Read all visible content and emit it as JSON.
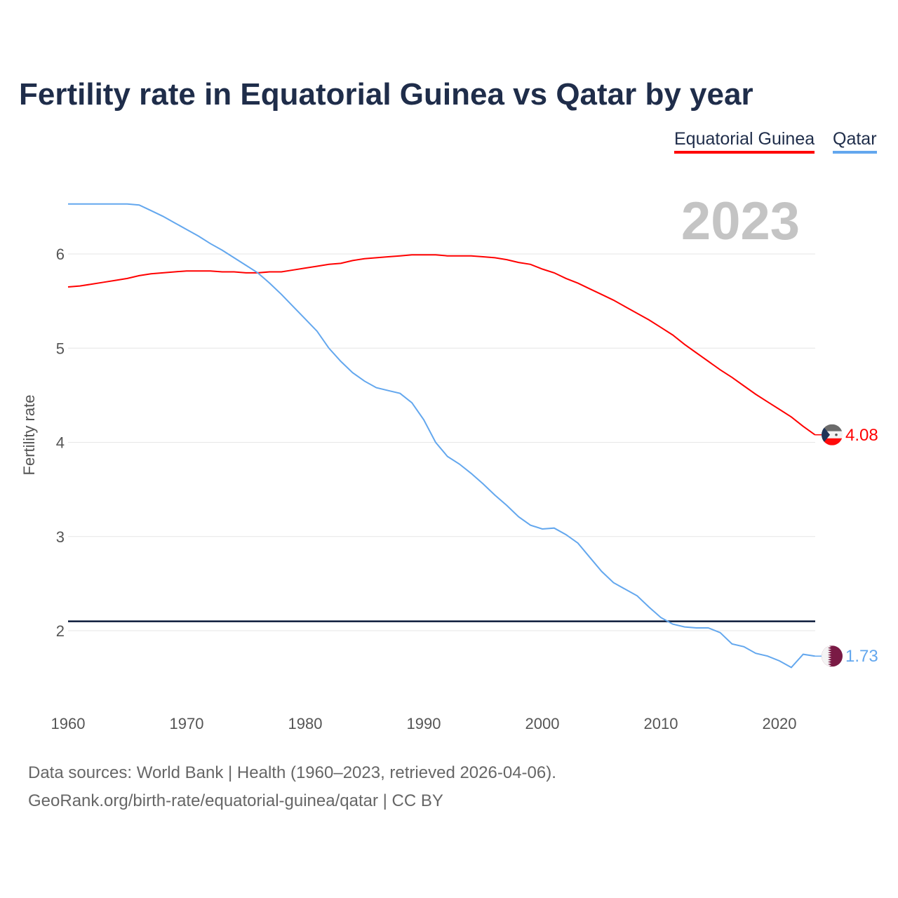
{
  "chart_data": {
    "type": "line",
    "title": "Fertility rate in Equatorial Guinea vs Qatar by year",
    "ylabel": "Fertility rate",
    "xlabel": "",
    "xlim": [
      1960,
      2023
    ],
    "ylim": [
      1.4,
      6.7
    ],
    "x_ticks": [
      "1960",
      "1970",
      "1980",
      "1990",
      "2000",
      "2010",
      "2020"
    ],
    "y_ticks": [
      "2",
      "3",
      "4",
      "5",
      "6"
    ],
    "current_year": "2023",
    "reference_line": 2.1,
    "legend_position": "top-right",
    "x": [
      1960,
      1961,
      1962,
      1963,
      1964,
      1965,
      1966,
      1967,
      1968,
      1969,
      1970,
      1971,
      1972,
      1973,
      1974,
      1975,
      1976,
      1977,
      1978,
      1979,
      1980,
      1981,
      1982,
      1983,
      1984,
      1985,
      1986,
      1987,
      1988,
      1989,
      1990,
      1991,
      1992,
      1993,
      1994,
      1995,
      1996,
      1997,
      1998,
      1999,
      2000,
      2001,
      2002,
      2003,
      2004,
      2005,
      2006,
      2007,
      2008,
      2009,
      2010,
      2011,
      2012,
      2013,
      2014,
      2015,
      2016,
      2017,
      2018,
      2019,
      2020,
      2021,
      2022,
      2023
    ],
    "series": [
      {
        "name": "Equatorial Guinea",
        "color": "#ff0000",
        "end_label": "4.08",
        "values": [
          5.65,
          5.66,
          5.68,
          5.7,
          5.72,
          5.74,
          5.77,
          5.79,
          5.8,
          5.81,
          5.82,
          5.82,
          5.82,
          5.81,
          5.81,
          5.8,
          5.8,
          5.81,
          5.81,
          5.83,
          5.85,
          5.87,
          5.89,
          5.9,
          5.93,
          5.95,
          5.96,
          5.97,
          5.98,
          5.99,
          5.99,
          5.99,
          5.98,
          5.98,
          5.98,
          5.97,
          5.96,
          5.94,
          5.91,
          5.89,
          5.84,
          5.8,
          5.74,
          5.69,
          5.63,
          5.57,
          5.51,
          5.44,
          5.37,
          5.3,
          5.22,
          5.14,
          5.04,
          4.95,
          4.86,
          4.77,
          4.69,
          4.6,
          4.51,
          4.43,
          4.35,
          4.27,
          4.17,
          4.08
        ]
      },
      {
        "name": "Qatar",
        "color": "#63a7ee",
        "end_label": "1.73",
        "values": [
          6.53,
          6.53,
          6.53,
          6.53,
          6.53,
          6.53,
          6.52,
          6.46,
          6.4,
          6.33,
          6.26,
          6.19,
          6.11,
          6.04,
          5.96,
          5.88,
          5.8,
          5.69,
          5.57,
          5.44,
          5.31,
          5.18,
          5.0,
          4.86,
          4.74,
          4.65,
          4.58,
          4.55,
          4.52,
          4.42,
          4.24,
          4.0,
          3.85,
          3.77,
          3.67,
          3.56,
          3.44,
          3.33,
          3.21,
          3.12,
          3.08,
          3.09,
          3.02,
          2.93,
          2.78,
          2.63,
          2.51,
          2.44,
          2.37,
          2.25,
          2.14,
          2.07,
          2.04,
          2.03,
          2.03,
          1.98,
          1.86,
          1.83,
          1.76,
          1.73,
          1.68,
          1.61,
          1.75,
          1.73
        ]
      }
    ]
  },
  "footer": {
    "line1": "Data sources: World Bank | Health (1960–2023, retrieved 2026-04-06).",
    "line2": "GeoRank.org/birth-rate/equatorial-guinea/qatar | CC BY"
  }
}
